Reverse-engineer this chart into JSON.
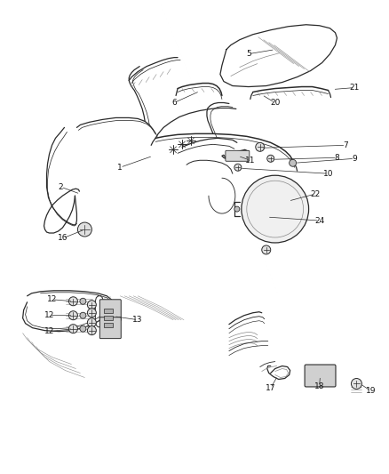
{
  "bg_color": "#ffffff",
  "fig_width": 4.38,
  "fig_height": 5.33,
  "dpi": 100,
  "line_color": "#2a2a2a",
  "light_color": "#888888",
  "label_fontsize": 6.5,
  "lw": 0.9
}
